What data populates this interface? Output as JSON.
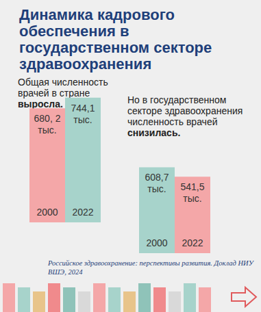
{
  "title": "Динамика кадрового обеспечения в государственном секторе здравоохранения",
  "source": "Российское здравоохранение: перспективы развития. Доклад НИУ ВШЭ, 2024",
  "chart_data": [
    {
      "type": "bar",
      "title": "Общая численность врачей в стране выросла.",
      "categories": [
        "2000",
        "2022"
      ],
      "values": [
        680.2,
        744.1
      ],
      "value_labels": [
        "680, 2 тыс.",
        "744,1 тыс."
      ],
      "colors": [
        "#f4a7a8",
        "#a7d3cb"
      ],
      "ylim": [
        0,
        800
      ],
      "data_labels": true,
      "tick_labels": "x"
    },
    {
      "type": "bar",
      "title": "Но в государственном секторе здравоохранения численность врачей снизилась.",
      "categories": [
        "2000",
        "2022"
      ],
      "values": [
        608.7,
        541.5
      ],
      "value_labels": [
        "608,7 тыс.",
        "541,5 тыс."
      ],
      "colors": [
        "#a7d3cb",
        "#f4a7a8"
      ],
      "ylim": [
        0,
        800
      ],
      "data_labels": true,
      "tick_labels": "x"
    }
  ]
}
